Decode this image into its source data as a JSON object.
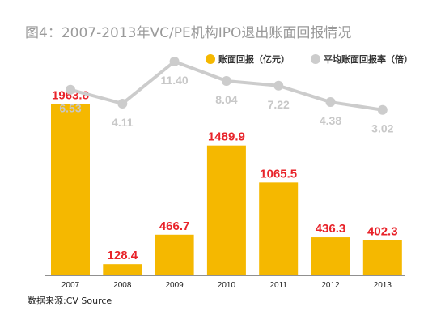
{
  "title": "图4：2007-2013年VC/PE机构IPO退出账面回报情况",
  "source": "数据来源:CV Source",
  "colors": {
    "bar": "#f5b800",
    "line": "#cccccc",
    "bar_label": "#e8232a",
    "line_label": "#c8c8c8"
  },
  "chart_data": {
    "type": "bar",
    "categories": [
      "2007",
      "2008",
      "2009",
      "2010",
      "2011",
      "2012",
      "2013"
    ],
    "series": [
      {
        "name": "账面回报（亿元）",
        "type": "bar",
        "values": [
          1963.8,
          128.4,
          466.7,
          1489.9,
          1065.5,
          436.3,
          402.3
        ],
        "labels": [
          "1963.8",
          "128.4",
          "466.7",
          "1489.9",
          "1065.5",
          "436.3",
          "402.3"
        ]
      },
      {
        "name": "平均账面回报率（倍）",
        "type": "line",
        "values": [
          6.53,
          4.11,
          11.4,
          8.04,
          7.22,
          4.38,
          3.02
        ],
        "labels": [
          "6.53",
          "4.11",
          "11.40",
          "8.04",
          "7.22",
          "4.38",
          "3.02"
        ]
      }
    ],
    "grid": false,
    "legend_position": "top-right"
  }
}
